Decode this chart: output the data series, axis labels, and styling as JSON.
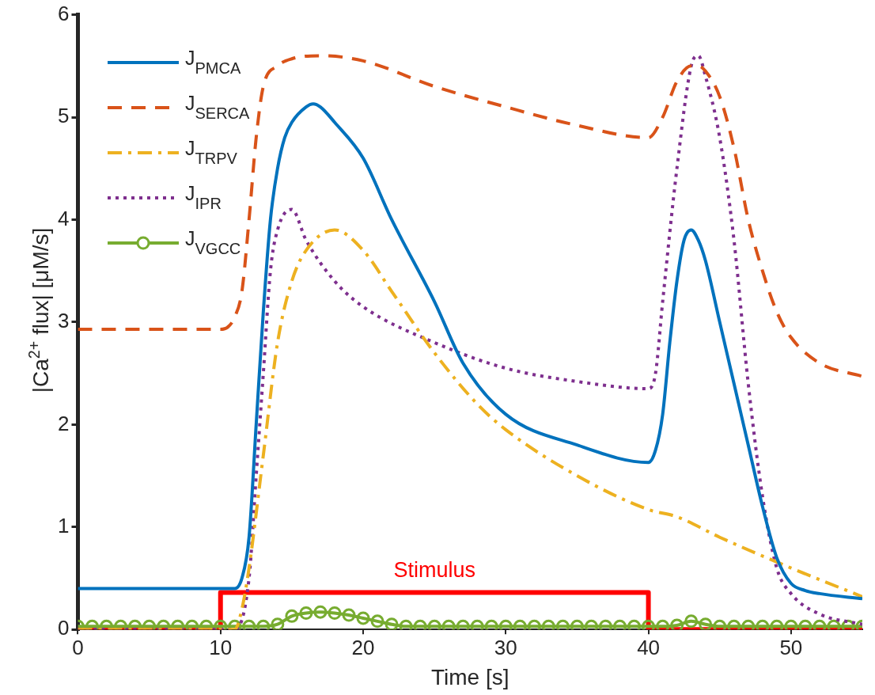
{
  "chart_data": {
    "type": "line",
    "xlabel": "Time [s]",
    "ylabel": "|Ca$^{2+}$ flux| [μM/s]",
    "xlim": [
      0,
      55
    ],
    "xticks": [
      0,
      10,
      20,
      30,
      40,
      50
    ],
    "ylim": [
      0,
      6
    ],
    "yticks": [
      0,
      1,
      2,
      3,
      4,
      5,
      6
    ],
    "grid": false,
    "legend": "top left",
    "marker": "none",
    "annotations": [
      {
        "text": "Stimulus",
        "x": 25,
        "y": 0.36
      }
    ],
    "series": [
      {
        "name": "J$_{PMCA}$",
        "color": "#0072bd",
        "line_style": "solid",
        "x": [
          0,
          11,
          11.5,
          12,
          12.5,
          13,
          13.5,
          14,
          14.5,
          15,
          16,
          16.5,
          17,
          18,
          20,
          22,
          25,
          27,
          30,
          35,
          40,
          40.5,
          41,
          41.5,
          42,
          42.5,
          43,
          43.5,
          44,
          45,
          46,
          47,
          48,
          49,
          50,
          51,
          52,
          55
        ],
        "values": [
          0.4,
          0.4,
          0.5,
          0.9,
          2.0,
          3.1,
          4.0,
          4.5,
          4.8,
          4.95,
          5.1,
          5.13,
          5.1,
          4.95,
          4.6,
          4.0,
          3.2,
          2.6,
          2.1,
          1.8,
          1.63,
          1.75,
          2.1,
          2.8,
          3.4,
          3.8,
          3.9,
          3.8,
          3.6,
          3.0,
          2.4,
          1.8,
          1.2,
          0.7,
          0.45,
          0.38,
          0.35,
          0.3
        ]
      },
      {
        "name": "J$_{SERCA}$",
        "color": "#d95319",
        "line_style": "dashed",
        "x": [
          0,
          10,
          10.5,
          11,
          11.5,
          12,
          12.5,
          13,
          14,
          15,
          17,
          20,
          25,
          30,
          35,
          40,
          41,
          42,
          43,
          43.5,
          44,
          45,
          46,
          47,
          48,
          49,
          50,
          52,
          55
        ],
        "values": [
          2.93,
          2.93,
          2.95,
          3.05,
          3.3,
          4.0,
          4.8,
          5.3,
          5.5,
          5.57,
          5.6,
          5.55,
          5.3,
          5.1,
          4.92,
          4.8,
          5.0,
          5.35,
          5.5,
          5.5,
          5.45,
          5.2,
          4.7,
          4.0,
          3.5,
          3.1,
          2.85,
          2.6,
          2.47
        ]
      },
      {
        "name": "J$_{TRPV}$",
        "color": "#edb120",
        "line_style": "dashdot",
        "x": [
          0,
          11,
          11.5,
          12,
          13,
          14,
          15,
          16,
          18,
          20,
          22,
          25,
          28,
          30,
          35,
          40,
          42,
          45,
          50,
          55
        ],
        "values": [
          0,
          0,
          0.2,
          0.6,
          1.7,
          2.8,
          3.4,
          3.7,
          3.9,
          3.7,
          3.3,
          2.7,
          2.2,
          1.95,
          1.5,
          1.17,
          1.1,
          0.9,
          0.6,
          0.32
        ]
      },
      {
        "name": "J$_{IPR}$",
        "color": "#7e2f8e",
        "line_style": "dotted",
        "x": [
          0,
          11,
          12,
          12.5,
          13,
          13.5,
          14,
          15,
          16,
          18,
          20,
          25,
          30,
          35,
          40,
          40.5,
          41,
          42,
          43,
          43.5,
          44,
          45,
          46,
          47,
          48,
          49,
          50,
          52,
          55
        ],
        "values": [
          0,
          0,
          0.5,
          1.5,
          2.5,
          3.5,
          3.9,
          4.1,
          3.8,
          3.4,
          3.15,
          2.8,
          2.55,
          2.42,
          2.35,
          2.5,
          3.2,
          4.5,
          5.5,
          5.6,
          5.4,
          4.8,
          3.8,
          2.4,
          1.3,
          0.6,
          0.35,
          0.15,
          0.05
        ]
      },
      {
        "name": "J$_{VGCC}$",
        "color": "#77ac30",
        "line_style": "solid",
        "marker": "circle",
        "x": [
          0,
          1,
          2,
          3,
          4,
          5,
          6,
          7,
          8,
          9,
          10,
          11,
          12,
          13,
          14,
          15,
          16,
          17,
          18,
          19,
          20,
          21,
          22,
          23,
          24,
          25,
          26,
          27,
          28,
          29,
          30,
          31,
          32,
          33,
          34,
          35,
          36,
          37,
          38,
          39,
          40,
          41,
          42,
          43,
          44,
          45,
          46,
          47,
          48,
          49,
          50,
          51,
          52,
          53,
          54,
          55
        ],
        "values": [
          0.03,
          0.03,
          0.03,
          0.03,
          0.03,
          0.03,
          0.03,
          0.03,
          0.03,
          0.03,
          0.03,
          0.03,
          0.03,
          0.03,
          0.05,
          0.13,
          0.16,
          0.17,
          0.16,
          0.14,
          0.11,
          0.08,
          0.05,
          0.03,
          0.03,
          0.03,
          0.03,
          0.03,
          0.03,
          0.03,
          0.03,
          0.03,
          0.03,
          0.03,
          0.03,
          0.03,
          0.03,
          0.03,
          0.03,
          0.03,
          0.03,
          0.03,
          0.04,
          0.08,
          0.05,
          0.03,
          0.03,
          0.03,
          0.03,
          0.03,
          0.03,
          0.03,
          0.03,
          0.03,
          0.03,
          0.03
        ]
      },
      {
        "type": "step",
        "color": "#ff0000",
        "line_style": "solid",
        "x": [
          0,
          10,
          40,
          55
        ],
        "values": [
          0,
          0.36,
          0,
          0
        ]
      }
    ]
  }
}
